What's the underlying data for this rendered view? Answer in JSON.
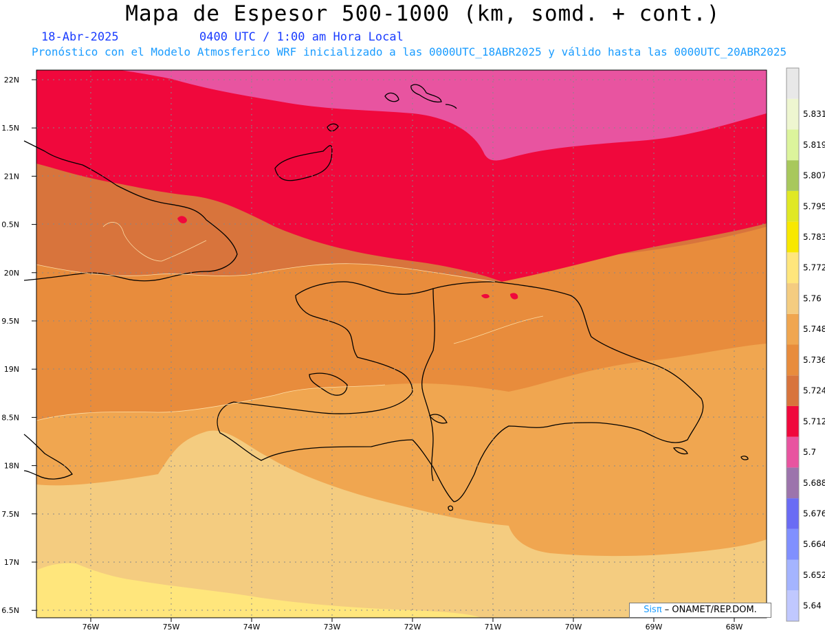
{
  "header": {
    "title": "Mapa de Espesor 500-1000 (km, somd. + cont.)",
    "date": "18-Abr-2025",
    "time": "0400 UTC / 1:00 am Hora Local",
    "subtitle": "Pronóstico con el Modelo Atmosferico WRF inicializado a las 0000UTC_18ABR2025 y válido hasta las  0000UTC_20ABR2025"
  },
  "map": {
    "lat_labels": [
      "22N",
      "1.5N",
      "21N",
      "0.5N",
      "20N",
      "9.5N",
      "19N",
      "8.5N",
      "18N",
      "7.5N",
      "17N",
      "6.5N"
    ],
    "lon_labels": [
      "76W",
      "75W",
      "74W",
      "73W",
      "72W",
      "71W",
      "70W",
      "69W",
      "68W"
    ],
    "legend_label": "",
    "colorbar": [
      {
        "label": "5.64",
        "color": "#c0c8ff"
      },
      {
        "label": "5.652",
        "color": "#a4b4ff"
      },
      {
        "label": "5.664",
        "color": "#8090ff"
      },
      {
        "label": "5.676",
        "color": "#6a6cf4"
      },
      {
        "label": "5.688",
        "color": "#9c74ac"
      },
      {
        "label": "5.7",
        "color": "#e854a0"
      },
      {
        "label": "5.712",
        "color": "#f0083c"
      },
      {
        "label": "5.724",
        "color": "#d8743c"
      },
      {
        "label": "5.736",
        "color": "#e88c3c"
      },
      {
        "label": "5.748",
        "color": "#f0a650"
      },
      {
        "label": "5.76",
        "color": "#f4cc80"
      },
      {
        "label": "5.772",
        "color": "#ffe67c"
      },
      {
        "label": "5.783",
        "color": "#f8e800"
      },
      {
        "label": "5.795",
        "color": "#e0e824"
      },
      {
        "label": "5.807",
        "color": "#a8c85c"
      },
      {
        "label": "5.819",
        "color": "#dcf49c"
      },
      {
        "label": "5.831",
        "color": "#eef6d0"
      },
      {
        "label": "",
        "color": "#e8e8e8"
      }
    ]
  },
  "credit": {
    "logo": "Sis",
    "logo_pi": "π",
    "text": " – ONAMET/REP.DOM."
  }
}
